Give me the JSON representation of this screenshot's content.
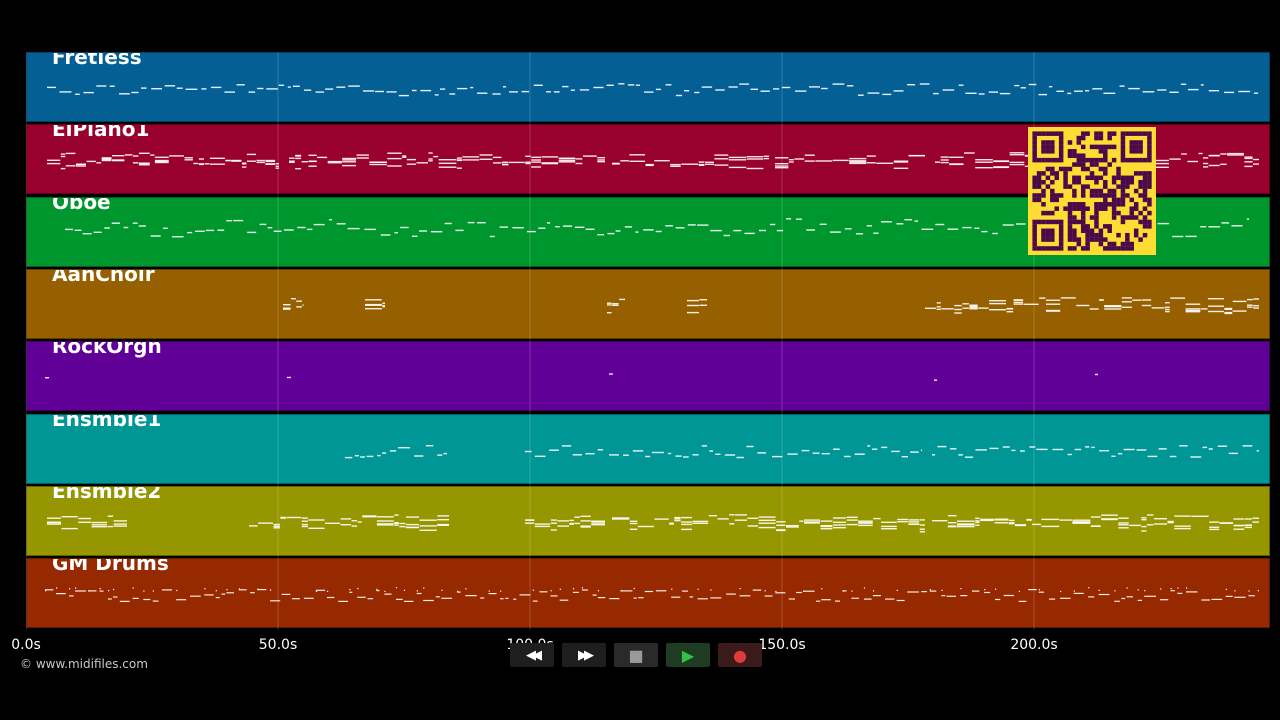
{
  "tracks": [
    {
      "name": "Fretless",
      "color": "#046094",
      "segments": [
        [
          20,
          1232
        ]
      ]
    },
    {
      "name": "ElPiano1",
      "color": "#98002e",
      "segments": [
        [
          20,
          252
        ],
        [
          262,
          578
        ],
        [
          585,
          742
        ],
        [
          748,
          898
        ],
        [
          908,
          1232
        ]
      ]
    },
    {
      "name": "Oboe",
      "color": "#00962e",
      "segments": [
        [
          38,
          1222
        ]
      ]
    },
    {
      "name": "AahChoir",
      "color": "#966000",
      "segments": [
        [
          256,
          276
        ],
        [
          338,
          358
        ],
        [
          580,
          598
        ],
        [
          660,
          680
        ],
        [
          898,
          1232
        ]
      ]
    },
    {
      "name": "RockOrgn",
      "color": "#600096",
      "segments": [
        [
          18,
          22
        ],
        [
          260,
          264
        ],
        [
          582,
          586
        ],
        [
          907,
          910
        ],
        [
          1068,
          1071
        ]
      ]
    },
    {
      "name": "Ensmble1",
      "color": "#009696",
      "segments": [
        [
          318,
          420
        ],
        [
          498,
          576
        ],
        [
          582,
          740
        ],
        [
          745,
          895
        ],
        [
          905,
          1232
        ]
      ]
    },
    {
      "name": "Ensmble2",
      "color": "#969600",
      "segments": [
        [
          20,
          100
        ],
        [
          222,
          422
        ],
        [
          498,
          578
        ],
        [
          585,
          898
        ],
        [
          905,
          1232
        ]
      ]
    },
    {
      "name": "GM Drums",
      "color": "#962900",
      "segments": [
        [
          18,
          1232
        ]
      ]
    }
  ],
  "axis": {
    "ticks": [
      {
        "label": "0.0s",
        "seconds": 0
      },
      {
        "label": "50.0s",
        "seconds": 50
      },
      {
        "label": "100.0s",
        "seconds": 100
      },
      {
        "label": "150.0s",
        "seconds": 150
      },
      {
        "label": "200.0s",
        "seconds": 200
      }
    ]
  },
  "credit": "© www.midifiles.com",
  "transport": {
    "buttons": [
      {
        "name": "rewind-button",
        "icon": "rewind-icon",
        "glyph": "◀◀",
        "color": "#ffffff"
      },
      {
        "name": "fast-forward-button",
        "icon": "fast-forward-icon",
        "glyph": "▶▶",
        "color": "#ffffff"
      },
      {
        "name": "stop-button",
        "icon": "stop-icon",
        "glyph": "■",
        "color": "#9a9a9a"
      },
      {
        "name": "play-button",
        "icon": "play-icon",
        "glyph": "▶",
        "color": "#33c046"
      },
      {
        "name": "record-button",
        "icon": "record-icon",
        "glyph": "●",
        "color": "#e03a3a"
      }
    ]
  },
  "colors": {
    "background": "#000000",
    "qr_background": "#ffdc33",
    "qr_foreground": "#4a0a4a",
    "note_color": "#ffffff"
  }
}
